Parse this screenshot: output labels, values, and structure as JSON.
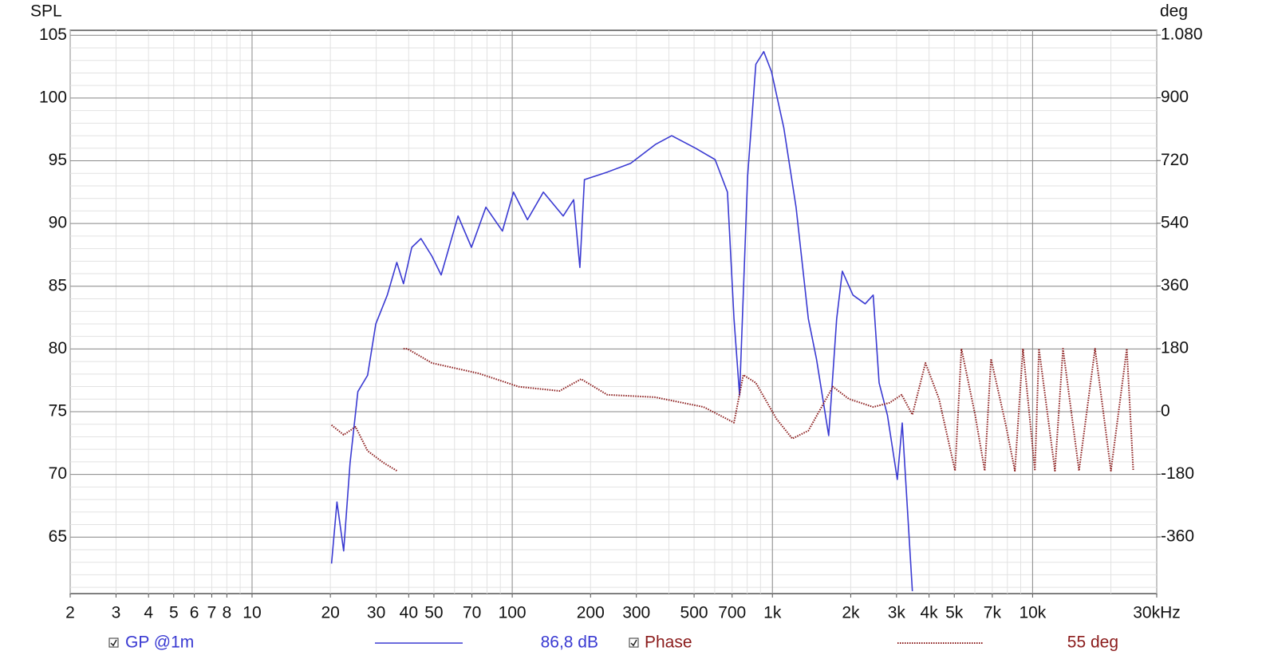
{
  "chart_data": {
    "type": "line",
    "xscale": "log",
    "ylabel": "SPL",
    "y2label": "deg",
    "xlim": [
      2,
      30000
    ],
    "ylim": [
      60.5,
      105.4
    ],
    "y2lim": [
      -522.5,
      1093.7
    ],
    "grid": true,
    "x_minor_grid": true,
    "y_minor_step": 1,
    "xticks": [
      2,
      3,
      4,
      5,
      6,
      7,
      8,
      10,
      20,
      30,
      40,
      50,
      70,
      100,
      200,
      300,
      500,
      700,
      {
        "value": 1000,
        "label": "1k"
      },
      {
        "value": 2000,
        "label": "2k"
      },
      {
        "value": 3000,
        "label": "3k"
      },
      {
        "value": 4000,
        "label": "4k"
      },
      {
        "value": 5000,
        "label": "5k"
      },
      {
        "value": 7000,
        "label": "7k"
      },
      {
        "value": 10000,
        "label": "10k"
      },
      {
        "value": 30000,
        "label": "30kHz"
      }
    ],
    "yticks": [
      65,
      70,
      75,
      80,
      85,
      90,
      95,
      100,
      105
    ],
    "y2ticks": [
      -360,
      -180,
      0,
      180,
      360,
      540,
      720,
      900,
      {
        "value": 1080,
        "label": "1.080"
      }
    ],
    "series": [
      {
        "name": "GP @1m",
        "color": "#3a3ad2",
        "axis": "y",
        "legend_value": "86,8 dB",
        "dash": "none",
        "x": [
          20.2,
          21.2,
          22.5,
          23.8,
          25.5,
          27.8,
          29.9,
          33.1,
          36.0,
          38.2,
          41.1,
          44.6,
          49.1,
          53.3,
          61.9,
          69.7,
          79.2,
          91.7,
          101.1,
          114.4,
          131.7,
          157,
          172.2,
          182,
          189.5,
          232,
          285,
          354.8,
          410,
          507,
          602,
          672,
          712,
          748,
          803,
          864,
          926,
          992,
          1107,
          1233,
          1374,
          1477,
          1646,
          1766,
          1857,
          2040,
          2272,
          2440,
          2571,
          2768,
          3020,
          3155,
          3450
        ],
        "values": [
          62.9,
          67.8,
          63.9,
          70.9,
          76.6,
          77.9,
          82.0,
          84.3,
          86.9,
          85.2,
          88.1,
          88.8,
          87.4,
          85.9,
          90.6,
          88.1,
          91.3,
          89.4,
          92.5,
          90.3,
          92.5,
          90.6,
          91.9,
          86.5,
          93.5,
          94.1,
          94.8,
          96.3,
          97.0,
          96.0,
          95.1,
          92.5,
          82.4,
          76.3,
          93.8,
          102.7,
          103.7,
          102.1,
          97.6,
          91.3,
          82.4,
          79.2,
          73.1,
          82.4,
          86.2,
          84.3,
          83.6,
          84.3,
          77.3,
          74.7,
          69.6,
          74.1,
          60.7
        ]
      },
      {
        "name": "Phase",
        "color": "#8b1c1c",
        "axis": "y2",
        "legend_value": "55 deg",
        "dash": "dotted",
        "x": [
          20.2,
          22.5,
          25.0,
          27.8,
          32.0,
          36.0,
          37.0,
          38.2,
          39.5,
          49.1,
          74.5,
          106,
          152,
          184,
          232,
          353,
          544,
          712,
          773,
          864,
          1036,
          1193,
          1374,
          1708,
          1968,
          2440,
          2820,
          3140,
          3450,
          3875,
          4370,
          5036,
          5327,
          6012,
          6546,
          6922,
          7858,
          8552,
          9184,
          10210,
          10580,
          12190,
          13090,
          15080,
          17380,
          20000,
          23020,
          24380
        ],
        "values": [
          -39,
          -67,
          -44,
          -113,
          -147,
          -170,
          null,
          180,
          180,
          139,
          109,
          71,
          59,
          93,
          48,
          41,
          13,
          -32,
          105,
          82,
          -21,
          -78,
          -55,
          71,
          36,
          13,
          25,
          48,
          -9,
          139,
          36,
          -170,
          180,
          -9,
          -170,
          151,
          -32,
          -170,
          180,
          -170,
          180,
          -170,
          180,
          -170,
          180,
          -170,
          180,
          -170
        ]
      }
    ]
  }
}
